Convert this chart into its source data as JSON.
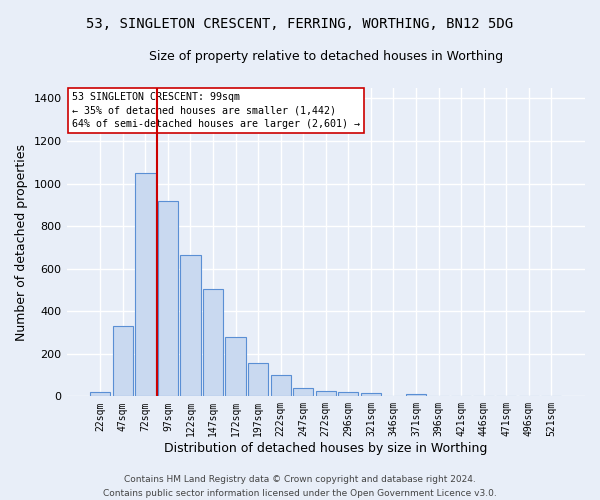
{
  "title": "53, SINGLETON CRESCENT, FERRING, WORTHING, BN12 5DG",
  "subtitle": "Size of property relative to detached houses in Worthing",
  "xlabel": "Distribution of detached houses by size in Worthing",
  "ylabel": "Number of detached properties",
  "categories": [
    "22sqm",
    "47sqm",
    "72sqm",
    "97sqm",
    "122sqm",
    "147sqm",
    "172sqm",
    "197sqm",
    "222sqm",
    "247sqm",
    "272sqm",
    "296sqm",
    "321sqm",
    "346sqm",
    "371sqm",
    "396sqm",
    "421sqm",
    "446sqm",
    "471sqm",
    "496sqm",
    "521sqm"
  ],
  "values": [
    20,
    330,
    1050,
    920,
    665,
    505,
    280,
    155,
    100,
    40,
    24,
    22,
    15,
    0,
    12,
    0,
    0,
    0,
    0,
    0,
    0
  ],
  "bar_color": "#c9d9f0",
  "bar_edge_color": "#5a8fd4",
  "red_line_color": "#cc0000",
  "annotation_text": "53 SINGLETON CRESCENT: 99sqm\n← 35% of detached houses are smaller (1,442)\n64% of semi-detached houses are larger (2,601) →",
  "annotation_box_color": "#ffffff",
  "annotation_box_edge": "#cc0000",
  "ylim": [
    0,
    1450
  ],
  "yticks": [
    0,
    200,
    400,
    600,
    800,
    1000,
    1200,
    1400
  ],
  "footnote": "Contains HM Land Registry data © Crown copyright and database right 2024.\nContains public sector information licensed under the Open Government Licence v3.0.",
  "background_color": "#e8eef8",
  "grid_color": "#ffffff",
  "title_fontsize": 10,
  "subtitle_fontsize": 9,
  "axis_label_fontsize": 9,
  "tick_fontsize": 7,
  "footnote_fontsize": 6.5,
  "red_line_bar_index": 3
}
